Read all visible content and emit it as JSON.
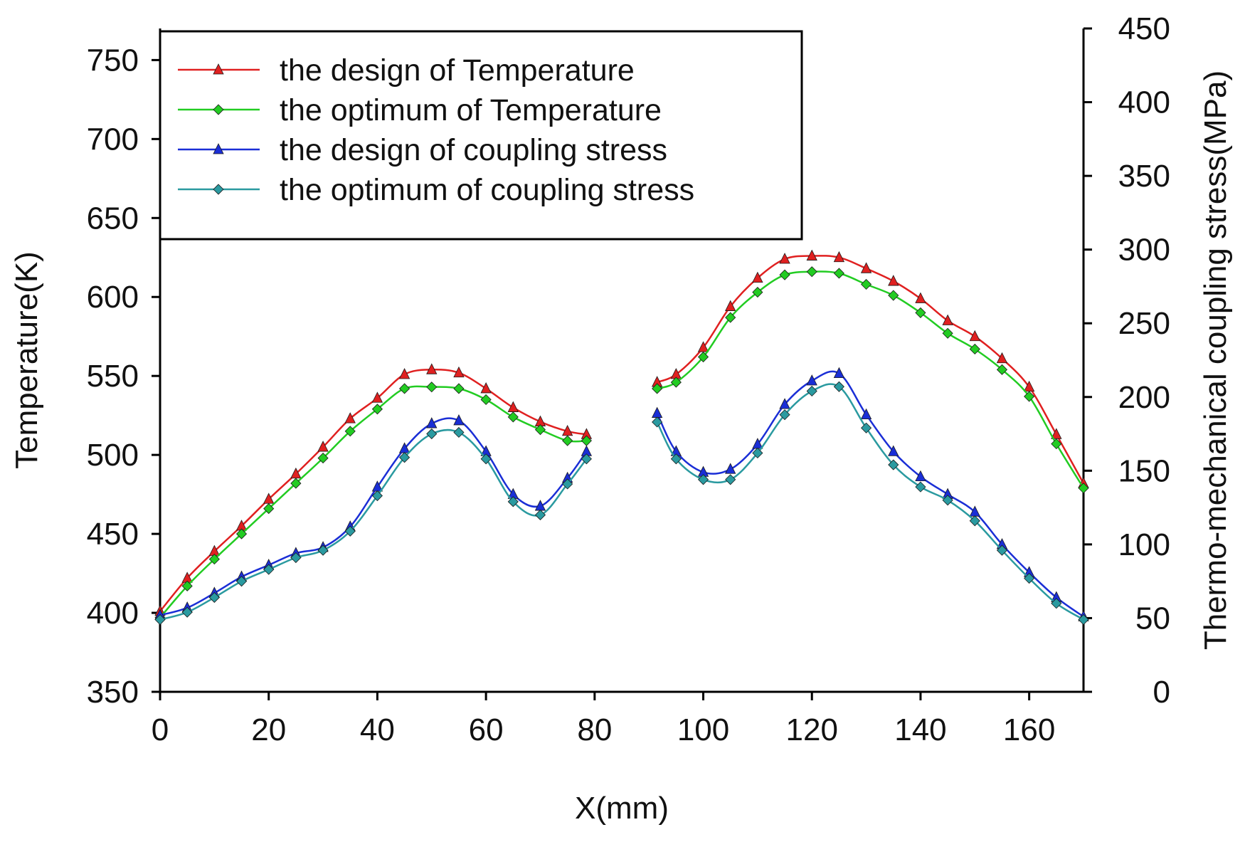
{
  "chart_data": {
    "type": "line",
    "title": "",
    "xlabel": "X(mm)",
    "ylabel_left": "Temperature(K)",
    "ylabel_right": "Thermo-mechanical coupling stress(MPa)",
    "xlim": [
      0,
      170
    ],
    "ylim_left": [
      350,
      770
    ],
    "ylim_right": [
      0,
      450
    ],
    "x_ticks": [
      0,
      20,
      40,
      60,
      80,
      100,
      120,
      140,
      160
    ],
    "y_left_ticks": [
      350,
      400,
      450,
      500,
      550,
      600,
      650,
      700,
      750
    ],
    "y_right_ticks": [
      0,
      50,
      100,
      150,
      200,
      250,
      300,
      350,
      400,
      450
    ],
    "grid": false,
    "legend_position": "top-left",
    "series": [
      {
        "name": "the design of Temperature",
        "axis": "left",
        "color": "#e02020",
        "marker": "triangle",
        "segments": [
          {
            "x": [
              0,
              5,
              10,
              15,
              20,
              25,
              30,
              35,
              40,
              45,
              50,
              55,
              60,
              65,
              70,
              75,
              78.5
            ],
            "y": [
              401,
              422,
              439,
              455,
              472,
              488,
              505,
              523,
              536,
              551,
              554,
              552,
              542,
              530,
              521,
              515,
              513
            ]
          },
          {
            "x": [
              91.5,
              95,
              100,
              105,
              110,
              115,
              120,
              125,
              130,
              135,
              140,
              145,
              150,
              155,
              160,
              165,
              170
            ],
            "y": [
              546,
              551,
              568,
              594,
              612,
              624,
              626,
              625,
              618,
              610,
              599,
              585,
              575,
              561,
              543,
              513,
              482
            ]
          }
        ]
      },
      {
        "name": "the optimum of Temperature",
        "axis": "left",
        "color": "#22cc22",
        "marker": "diamond",
        "segments": [
          {
            "x": [
              0,
              5,
              10,
              15,
              20,
              25,
              30,
              35,
              40,
              45,
              50,
              55,
              60,
              65,
              70,
              75,
              78.5
            ],
            "y": [
              397,
              417,
              434,
              450,
              466,
              482,
              498,
              515,
              529,
              542,
              543,
              542,
              535,
              524,
              516,
              509,
              509
            ]
          },
          {
            "x": [
              91.5,
              95,
              100,
              105,
              110,
              115,
              120,
              125,
              130,
              135,
              140,
              145,
              150,
              155,
              160,
              165,
              170
            ],
            "y": [
              542,
              546,
              562,
              587,
              603,
              614,
              616,
              615,
              608,
              601,
              590,
              577,
              567,
              554,
              537,
              507,
              479
            ]
          }
        ]
      },
      {
        "name": "the design of  coupling stress",
        "axis": "right",
        "color": "#1a2ed6",
        "marker": "triangle",
        "segments": [
          {
            "x": [
              0,
              5,
              10,
              15,
              20,
              25,
              30,
              35,
              40,
              45,
              50,
              55,
              60,
              65,
              70,
              75,
              78.5
            ],
            "y": [
              52,
              57,
              67,
              78,
              86,
              94,
              98,
              112,
              139,
              165,
              182,
              184,
              163,
              134,
              126,
              145,
              163
            ]
          },
          {
            "x": [
              91.5,
              95,
              100,
              105,
              110,
              115,
              120,
              125,
              130,
              135,
              140,
              145,
              150,
              155,
              160,
              165,
              170
            ],
            "y": [
              189,
              163,
              149,
              151,
              168,
              195,
              211,
              216,
              188,
              163,
              146,
              134,
              122,
              100,
              81,
              64,
              51
            ]
          }
        ]
      },
      {
        "name": "the optimum of  coupling stress",
        "axis": "right",
        "color": "#2a9aa0",
        "marker": "diamond",
        "segments": [
          {
            "x": [
              0,
              5,
              10,
              15,
              20,
              25,
              30,
              35,
              40,
              45,
              50,
              55,
              60,
              65,
              70,
              75,
              78.5
            ],
            "y": [
              49,
              54,
              64,
              75,
              83,
              91,
              96,
              109,
              133,
              159,
              175,
              176,
              158,
              129,
              120,
              141,
              158
            ]
          },
          {
            "x": [
              91.5,
              95,
              100,
              105,
              110,
              115,
              120,
              125,
              130,
              135,
              140,
              145,
              150,
              155,
              160,
              165,
              170
            ],
            "y": [
              183,
              158,
              144,
              144,
              162,
              188,
              204,
              207,
              179,
              154,
              139,
              130,
              116,
              96,
              77,
              60,
              49
            ]
          }
        ]
      }
    ]
  }
}
